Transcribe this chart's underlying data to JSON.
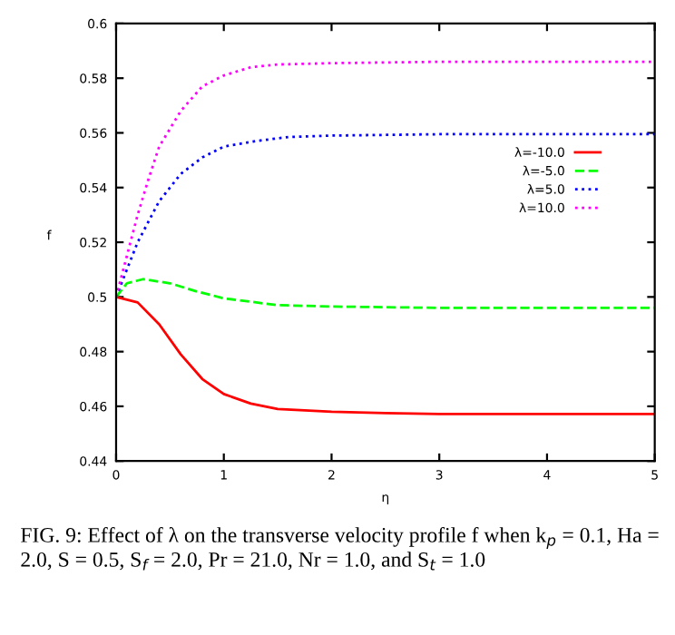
{
  "chart_data": {
    "type": "line",
    "xlabel": "η",
    "ylabel": "f",
    "xlim": [
      0,
      5
    ],
    "xticks": [
      0,
      1,
      2,
      3,
      4,
      5
    ],
    "ylim": [
      0.44,
      0.6
    ],
    "yticks": [
      0.44,
      0.46,
      0.48,
      0.5,
      0.52,
      0.54,
      0.56,
      0.58,
      0.6
    ],
    "grid": false,
    "legend": "right",
    "marker": "none",
    "series": [
      {
        "name": "λ=-10.0",
        "color": "#ff0000",
        "line_style": "solid",
        "x": [
          0,
          0.2,
          0.4,
          0.6,
          0.8,
          1.0,
          1.25,
          1.5,
          2,
          2.5,
          3,
          5
        ],
        "values": [
          0.5,
          0.498,
          0.49,
          0.479,
          0.47,
          0.4645,
          0.461,
          0.459,
          0.458,
          0.4575,
          0.4572,
          0.4572
        ]
      },
      {
        "name": "λ=-5.0",
        "color": "#00ff00",
        "line_style": "dashed",
        "x": [
          0,
          0.1,
          0.25,
          0.5,
          0.75,
          1,
          1.5,
          2,
          3,
          5
        ],
        "values": [
          0.5,
          0.505,
          0.5065,
          0.505,
          0.502,
          0.4995,
          0.497,
          0.4965,
          0.496,
          0.496
        ]
      },
      {
        "name": "λ=5.0",
        "color": "#0000ff",
        "line_style": "dotted",
        "x": [
          0,
          0.2,
          0.4,
          0.6,
          0.8,
          1.0,
          1.3,
          1.6,
          2,
          3,
          5
        ],
        "values": [
          0.5,
          0.52,
          0.535,
          0.545,
          0.551,
          0.555,
          0.557,
          0.5585,
          0.559,
          0.5595,
          0.5595
        ]
      },
      {
        "name": "λ=10.0",
        "color": "#ff00ff",
        "line_style": "dotted",
        "x": [
          0,
          0.1,
          0.2,
          0.3,
          0.4,
          0.6,
          0.8,
          1.0,
          1.25,
          1.5,
          2,
          3,
          5
        ],
        "values": [
          0.5,
          0.515,
          0.53,
          0.543,
          0.555,
          0.568,
          0.577,
          0.581,
          0.584,
          0.585,
          0.5855,
          0.586,
          0.586
        ]
      }
    ],
    "annotations": [
      "FIG. 9: Effect of λ on the transverse velocity profile f when k$_{p}$ = 0.1, Ha = 2.0, S = 0.5, S$_{f}$ = 2.0, Pr = 21.0, Nr = 1.0, and S$_{t}$ = 1.0"
    ]
  }
}
